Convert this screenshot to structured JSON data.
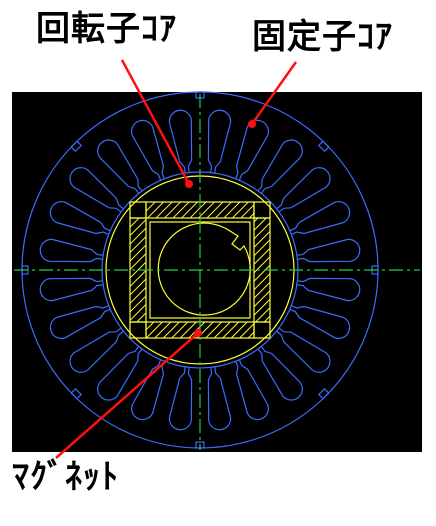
{
  "labels": {
    "rotor_core": "回転子ｺｱ",
    "stator_core": "固定子ｺｱ",
    "magnet": "ﾏｸﾞﾈｯﾄ"
  },
  "colors": {
    "background": "#000000",
    "stator": "#3a6cff",
    "rotor": "#ffff33",
    "centerline": "#22cc44",
    "leader": "#ff1010",
    "text": "#000000"
  },
  "stator": {
    "slot_count": 24
  }
}
